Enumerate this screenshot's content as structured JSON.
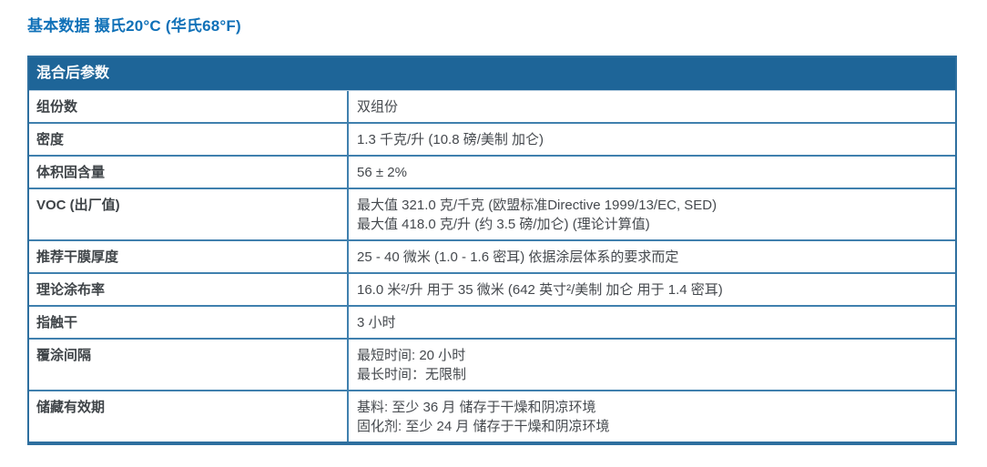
{
  "page_title": "基本数据 摄氏20°C (华氏68°F)",
  "table": {
    "header": "混合后参数",
    "rows": [
      {
        "label": "组份数",
        "lines": [
          "双组份"
        ]
      },
      {
        "label": "密度",
        "lines": [
          "1.3 千克/升 (10.8 磅/美制 加仑)"
        ]
      },
      {
        "label": "体积固含量",
        "lines": [
          "56 ± 2%"
        ]
      },
      {
        "label": "VOC (出厂值)",
        "lines": [
          "最大值 321.0 克/千克 (欧盟标准Directive 1999/13/EC, SED)",
          "最大值 418.0 克/升 (约 3.5 磅/加仑) (理论计算值)"
        ]
      },
      {
        "label": "推荐干膜厚度",
        "lines": [
          "25 - 40 微米 (1.0 - 1.6 密耳) 依据涂层体系的要求而定"
        ]
      },
      {
        "label": "理论涂布率",
        "lines": [
          "16.0 米²/升 用于 35 微米 (642 英寸²/美制 加仑 用于 1.4 密耳)"
        ]
      },
      {
        "label": "指触干",
        "lines": [
          "3 小时"
        ]
      },
      {
        "label": "覆涂间隔",
        "lines": [
          "最短时间: 20 小时",
          "最长时间：无限制"
        ]
      },
      {
        "label": "储藏有效期",
        "lines": [
          "基料: 至少 36 月 储存于干燥和阴凉环境",
          "固化剂: 至少 24 月 储存于干燥和阴凉环境"
        ]
      }
    ]
  },
  "colors": {
    "title_blue": "#1071B8",
    "header_bg": "#1E6598",
    "header_text": "#FFFFFF",
    "border_outer": "#2E6F9F",
    "border_inner": "#4080AE",
    "label_text": "#3F4448",
    "value_text": "#45494E"
  }
}
